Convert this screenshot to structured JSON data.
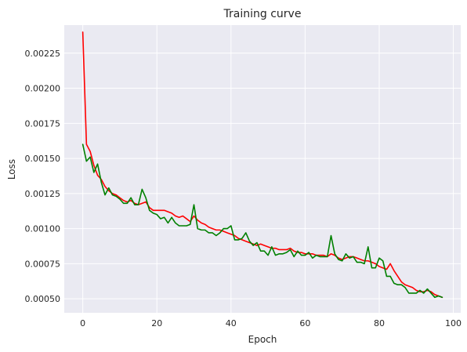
{
  "chart_data": {
    "type": "line",
    "title": "Training curve",
    "xlabel": "Epoch",
    "ylabel": "Loss",
    "xlim": [
      -5,
      102
    ],
    "ylim": [
      0.0004,
      0.00245
    ],
    "x_ticks": [
      0,
      20,
      40,
      60,
      80,
      100
    ],
    "x_tick_labels": [
      "0",
      "20",
      "40",
      "60",
      "80",
      "100"
    ],
    "y_ticks": [
      0.0005,
      0.00075,
      0.001,
      0.00125,
      0.0015,
      0.00175,
      0.002,
      0.00225
    ],
    "y_tick_labels": [
      "0.00050",
      "0.00075",
      "0.00100",
      "0.00125",
      "0.00150",
      "0.00175",
      "0.00200",
      "0.00225"
    ],
    "grid": true,
    "background": "#eaeaf2",
    "x": [
      0,
      1,
      2,
      3,
      4,
      5,
      6,
      7,
      8,
      9,
      10,
      11,
      12,
      13,
      14,
      15,
      16,
      17,
      18,
      19,
      20,
      21,
      22,
      23,
      24,
      25,
      26,
      27,
      28,
      29,
      30,
      31,
      32,
      33,
      34,
      35,
      36,
      37,
      38,
      39,
      40,
      41,
      42,
      43,
      44,
      45,
      46,
      47,
      48,
      49,
      50,
      51,
      52,
      53,
      54,
      55,
      56,
      57,
      58,
      59,
      60,
      61,
      62,
      63,
      64,
      65,
      66,
      67,
      68,
      69,
      70,
      71,
      72,
      73,
      74,
      75,
      76,
      77,
      78,
      79,
      80,
      81,
      82,
      83,
      84,
      85,
      86,
      87,
      88,
      89,
      90,
      91,
      92,
      93,
      94,
      95,
      96,
      97
    ],
    "series": [
      {
        "color": "#ff0000",
        "values": [
          0.0024,
          0.0016,
          0.00155,
          0.00145,
          0.00138,
          0.00135,
          0.0013,
          0.00127,
          0.00125,
          0.00124,
          0.00122,
          0.0012,
          0.00119,
          0.0012,
          0.00118,
          0.00117,
          0.00118,
          0.00119,
          0.00115,
          0.00113,
          0.00113,
          0.00113,
          0.00113,
          0.00112,
          0.00111,
          0.00109,
          0.00108,
          0.00109,
          0.00107,
          0.00105,
          0.00109,
          0.00106,
          0.00104,
          0.00103,
          0.00101,
          0.001,
          0.00099,
          0.00099,
          0.00098,
          0.00097,
          0.00096,
          0.00095,
          0.00093,
          0.00092,
          0.00091,
          0.0009,
          0.00089,
          0.00088,
          0.00089,
          0.00088,
          0.00087,
          0.00086,
          0.00086,
          0.00085,
          0.00085,
          0.00085,
          0.00086,
          0.00084,
          0.00083,
          0.00083,
          0.00082,
          0.00082,
          0.00082,
          0.00081,
          0.00081,
          0.00081,
          0.0008,
          0.00082,
          0.00081,
          0.00079,
          0.00078,
          0.00079,
          0.0008,
          0.0008,
          0.00079,
          0.00078,
          0.00077,
          0.00077,
          0.00076,
          0.00075,
          0.00073,
          0.00072,
          0.00071,
          0.00075,
          0.0007,
          0.00066,
          0.00062,
          0.0006,
          0.00059,
          0.00058,
          0.00056,
          0.00055,
          0.00055,
          0.00056,
          0.00055,
          0.00053,
          0.00052,
          0.00051
        ]
      },
      {
        "color": "#008000",
        "values": [
          0.0016,
          0.00148,
          0.00151,
          0.0014,
          0.00146,
          0.00133,
          0.00124,
          0.00129,
          0.00124,
          0.00123,
          0.00121,
          0.00118,
          0.00118,
          0.00122,
          0.00117,
          0.00117,
          0.00128,
          0.00122,
          0.00113,
          0.00111,
          0.0011,
          0.00107,
          0.00108,
          0.00104,
          0.00108,
          0.00104,
          0.00102,
          0.00102,
          0.00102,
          0.00103,
          0.00117,
          0.001,
          0.00099,
          0.00099,
          0.00097,
          0.00097,
          0.00095,
          0.00097,
          0.001,
          0.001,
          0.00102,
          0.00092,
          0.00092,
          0.00093,
          0.00097,
          0.00091,
          0.00088,
          0.0009,
          0.00084,
          0.00084,
          0.00081,
          0.00087,
          0.00081,
          0.00082,
          0.00082,
          0.00083,
          0.00085,
          0.0008,
          0.00084,
          0.00081,
          0.00081,
          0.00083,
          0.00079,
          0.00081,
          0.0008,
          0.0008,
          0.0008,
          0.00095,
          0.00082,
          0.00078,
          0.00077,
          0.00082,
          0.00079,
          0.0008,
          0.00076,
          0.00076,
          0.00075,
          0.00087,
          0.00072,
          0.00072,
          0.00079,
          0.00077,
          0.00066,
          0.00066,
          0.00061,
          0.0006,
          0.0006,
          0.00058,
          0.00054,
          0.00054,
          0.00054,
          0.00056,
          0.00054,
          0.00057,
          0.00054,
          0.00051,
          0.00052,
          0.00051
        ]
      }
    ]
  }
}
